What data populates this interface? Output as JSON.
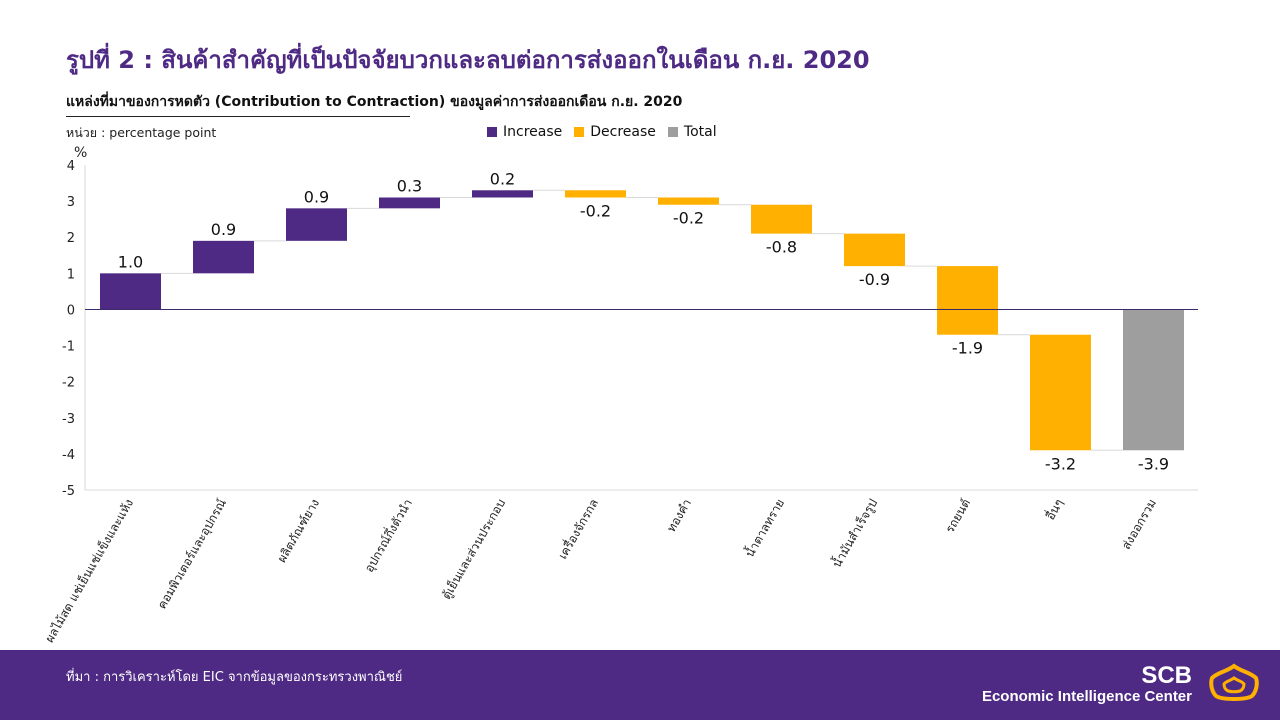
{
  "header": {
    "title": "รูปที่ 2 : สินค้าสำคัญที่เป็นปัจจัยบวกและลบต่อการส่งออกในเดือน ก.ย. 2020",
    "subtitle": "แหล่งที่มาของการหดตัว (Contribution to Contraction) ของมูลค่าการส่งออกเดือน ก.ย. 2020",
    "unit_note": "หน่วย : percentage  point"
  },
  "legend": [
    {
      "label": "Increase",
      "color": "#4e2a84"
    },
    {
      "label": "Decrease",
      "color": "#ffb000"
    },
    {
      "label": "Total",
      "color": "#9e9e9e"
    }
  ],
  "chart_data": {
    "type": "waterfall",
    "ylabel": "%",
    "ylim": [
      -5,
      4
    ],
    "yticks": [
      4,
      3,
      2,
      1,
      0,
      -1,
      -2,
      -3,
      -4,
      -5
    ],
    "categories": [
      "ผลไม้สด แช่เย็นแช่แข็งและแห้ง",
      "คอมพิวเตอร์และอุปกรณ์",
      "ผลิตภัณฑ์ยาง",
      "อุปกรณ์กึ่งตัวนำ",
      "ตู้เย็นและส่วนประกอบ",
      "เครื่องจักรกล",
      "ทองคำ",
      "น้ำตาลทราย",
      "น้ำมันสำเร็จรูป",
      "รถยนต์",
      "อื่นๆ",
      "ส่งออกรวม"
    ],
    "values": [
      1.0,
      0.9,
      0.9,
      0.3,
      0.2,
      -0.2,
      -0.2,
      -0.8,
      -0.9,
      -1.9,
      -3.2,
      -3.9
    ],
    "labels": [
      "1.0",
      "0.9",
      "0.9",
      "0.3",
      "0.2",
      "-0.2",
      "-0.2",
      "-0.8",
      "-0.9",
      "-1.9",
      "-3.2",
      "-3.9"
    ],
    "series_types": [
      "Increase",
      "Increase",
      "Increase",
      "Increase",
      "Increase",
      "Decrease",
      "Decrease",
      "Decrease",
      "Decrease",
      "Decrease",
      "Decrease",
      "Total"
    ],
    "bars": [
      {
        "start": 0.0,
        "end": 1.0
      },
      {
        "start": 1.0,
        "end": 1.9
      },
      {
        "start": 1.9,
        "end": 2.8
      },
      {
        "start": 2.8,
        "end": 3.1
      },
      {
        "start": 3.1,
        "end": 3.3
      },
      {
        "start": 3.3,
        "end": 3.1
      },
      {
        "start": 3.1,
        "end": 2.9
      },
      {
        "start": 2.9,
        "end": 2.1
      },
      {
        "start": 2.1,
        "end": 1.2
      },
      {
        "start": 1.2,
        "end": -0.7
      },
      {
        "start": -0.7,
        "end": -3.9
      },
      {
        "start": 0.0,
        "end": -3.9
      }
    ],
    "grid": false
  },
  "footer": {
    "source": "ที่มา : การวิเคราะห์โดย EIC จากข้อมูลของกระทรวงพาณิชย์",
    "brand_name": "SCB",
    "brand_sub": "Economic Intelligence Center"
  }
}
